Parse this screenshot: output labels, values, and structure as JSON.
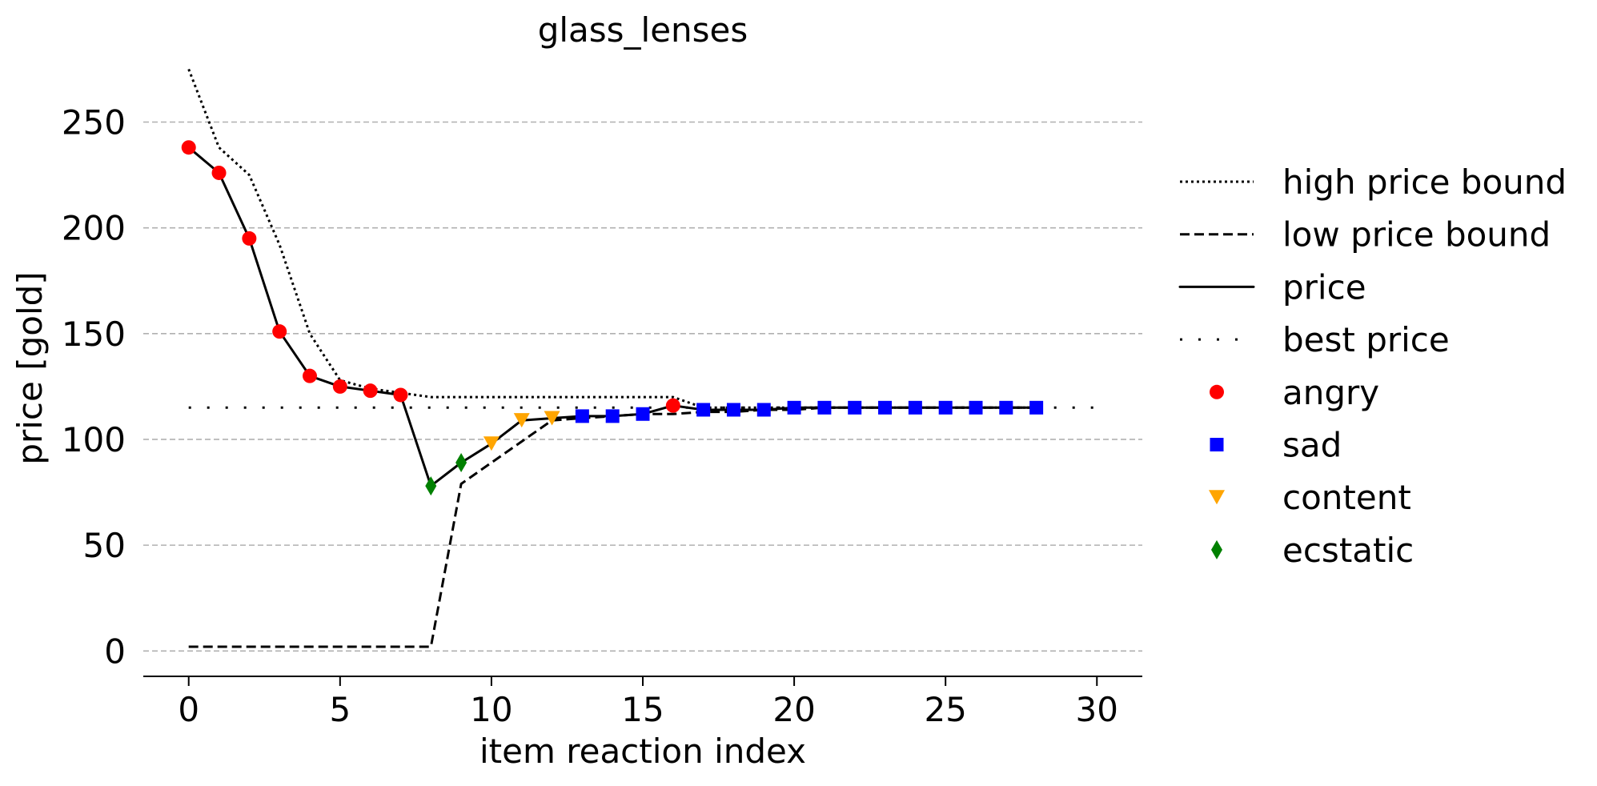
{
  "chart_data": {
    "type": "line",
    "title": "glass_lenses",
    "xlabel": "item reaction index",
    "ylabel": "price [gold]",
    "xlim": [
      -1.5,
      31.5
    ],
    "ylim": [
      -12,
      285
    ],
    "x_ticks": [
      0,
      5,
      10,
      15,
      20,
      25,
      30
    ],
    "y_ticks": [
      0,
      50,
      100,
      150,
      200,
      250
    ],
    "grid": "horizontal dashed",
    "legend_position": "right",
    "lines": [
      {
        "name": "high price bound",
        "style": "dotted",
        "color": "#000000",
        "x": [
          0,
          1,
          2,
          3,
          4,
          5,
          6,
          7,
          8,
          9,
          10,
          11,
          12,
          13,
          14,
          15,
          16,
          17,
          18,
          19,
          20,
          21,
          22,
          23,
          24,
          25,
          26,
          27,
          28
        ],
        "y": [
          275,
          238,
          225,
          192,
          150,
          128,
          124,
          122,
          120,
          120,
          120,
          120,
          120,
          120,
          120,
          120,
          120,
          115,
          115,
          115,
          115,
          115,
          115,
          115,
          115,
          115,
          115,
          115,
          115
        ]
      },
      {
        "name": "low price bound",
        "style": "dashed",
        "color": "#000000",
        "x": [
          0,
          1,
          2,
          3,
          4,
          5,
          6,
          7,
          8,
          9,
          10,
          11,
          12,
          13,
          14,
          15,
          16,
          17,
          18,
          19,
          20,
          21,
          22,
          23,
          24,
          25,
          26,
          27,
          28
        ],
        "y": [
          2,
          2,
          2,
          2,
          2,
          2,
          2,
          2,
          2,
          79,
          89,
          99,
          109,
          110,
          111,
          112,
          112,
          113,
          113,
          114,
          114,
          115,
          115,
          115,
          115,
          115,
          115,
          115,
          115
        ]
      },
      {
        "name": "price",
        "style": "solid",
        "color": "#000000",
        "x": [
          0,
          1,
          2,
          3,
          4,
          5,
          6,
          7,
          8,
          9,
          10,
          11,
          12,
          13,
          14,
          15,
          16,
          17,
          18,
          19,
          20,
          21,
          22,
          23,
          24,
          25,
          26,
          27,
          28
        ],
        "y": [
          238,
          226,
          195,
          151,
          130,
          125,
          123,
          121,
          78,
          89,
          98,
          109,
          110,
          111,
          111,
          112,
          116,
          114,
          114,
          114,
          115,
          115,
          115,
          115,
          115,
          115,
          115,
          115,
          115
        ]
      },
      {
        "name": "best price",
        "style": "sparse-dotted",
        "color": "#000000",
        "x": [
          0,
          30
        ],
        "y": [
          115,
          115
        ]
      }
    ],
    "markers": [
      {
        "name": "angry",
        "shape": "circle",
        "color": "#ff0000",
        "x": [
          0,
          1,
          2,
          3,
          4,
          5,
          6,
          7,
          16
        ],
        "y": [
          238,
          226,
          195,
          151,
          130,
          125,
          123,
          121,
          116
        ]
      },
      {
        "name": "sad",
        "shape": "square",
        "color": "#0000ff",
        "x": [
          13,
          14,
          15,
          17,
          18,
          19,
          20,
          21,
          22,
          23,
          24,
          25,
          26,
          27,
          28
        ],
        "y": [
          111,
          111,
          112,
          114,
          114,
          114,
          115,
          115,
          115,
          115,
          115,
          115,
          115,
          115,
          115
        ]
      },
      {
        "name": "content",
        "shape": "triangle-down",
        "color": "#ffa500",
        "x": [
          10,
          11,
          12
        ],
        "y": [
          98,
          109,
          110
        ]
      },
      {
        "name": "ecstatic",
        "shape": "diamond",
        "color": "#008000",
        "x": [
          8,
          9
        ],
        "y": [
          78,
          89
        ]
      }
    ]
  }
}
